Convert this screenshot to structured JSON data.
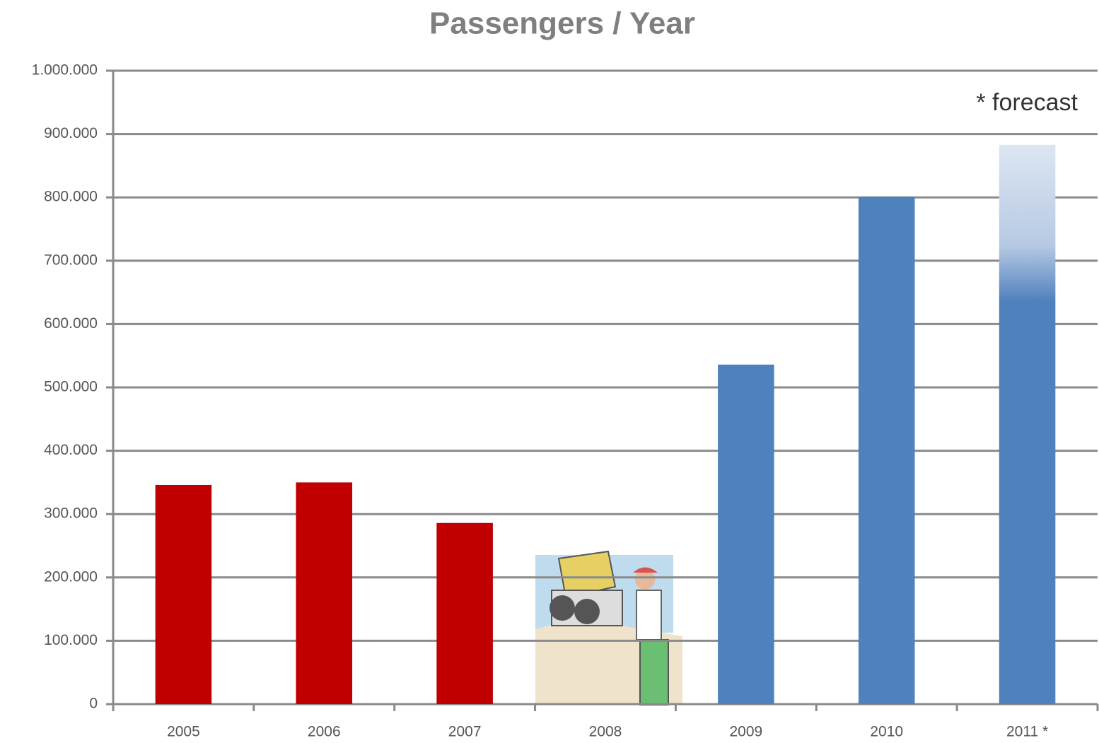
{
  "chart_data": {
    "type": "bar",
    "title": "Passengers / Year",
    "annotation": "* forecast",
    "categories": [
      "2005",
      "2006",
      "2007",
      "2008",
      "2009",
      "2010",
      "2011 *"
    ],
    "values": [
      346000,
      350000,
      286000,
      null,
      536000,
      801000,
      883000
    ],
    "colors": [
      "#c00000",
      "#c00000",
      "#c00000",
      "#c00000",
      "#4f81bd",
      "#4f81bd",
      "#4f81bd"
    ],
    "ylim": [
      0,
      1000000
    ],
    "yticks": [
      0,
      {
        "value": 100000,
        "label": "100.000"
      },
      {
        "value": 200000,
        "label": "200.000"
      },
      {
        "value": 300000,
        "label": "300.000"
      },
      {
        "value": 400000,
        "label": "400.000"
      },
      {
        "value": 500000,
        "label": "500.000"
      },
      {
        "value": 600000,
        "label": "600.000"
      },
      {
        "value": 700000,
        "label": "700.000"
      },
      {
        "value": 800000,
        "label": "800.000"
      },
      {
        "value": 900000,
        "label": "900.000"
      },
      {
        "value": 1000000,
        "label": "1.000.000"
      }
    ],
    "grid": true
  }
}
